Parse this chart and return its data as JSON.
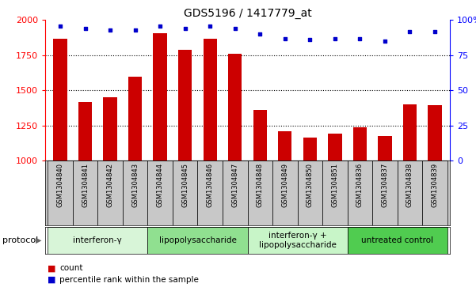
{
  "title": "GDS5196 / 1417779_at",
  "samples": [
    "GSM1304840",
    "GSM1304841",
    "GSM1304842",
    "GSM1304843",
    "GSM1304844",
    "GSM1304845",
    "GSM1304846",
    "GSM1304847",
    "GSM1304848",
    "GSM1304849",
    "GSM1304850",
    "GSM1304851",
    "GSM1304836",
    "GSM1304837",
    "GSM1304838",
    "GSM1304839"
  ],
  "counts": [
    1870,
    1420,
    1450,
    1600,
    1905,
    1790,
    1870,
    1760,
    1360,
    1210,
    1165,
    1195,
    1235,
    1175,
    1400,
    1395
  ],
  "percentiles": [
    96,
    94,
    93,
    93,
    96,
    94,
    96,
    94,
    90,
    87,
    86,
    87,
    87,
    85,
    92,
    92
  ],
  "ylim_left": [
    1000,
    2000
  ],
  "ylim_right": [
    0,
    100
  ],
  "yticks_left": [
    1000,
    1250,
    1500,
    1750,
    2000
  ],
  "yticks_right": [
    0,
    25,
    50,
    75,
    100
  ],
  "bar_color": "#cc0000",
  "dot_color": "#0000cc",
  "bg_plot": "#ffffff",
  "bg_xlabels": "#c8c8c8",
  "groups": [
    {
      "label": "interferon-γ",
      "start": 0,
      "end": 3,
      "color": "#d8f5d8"
    },
    {
      "label": "lipopolysaccharide",
      "start": 4,
      "end": 7,
      "color": "#90e090"
    },
    {
      "label": "interferon-γ +\nlipopolysaccharide",
      "start": 8,
      "end": 11,
      "color": "#c8f5c8"
    },
    {
      "label": "untreated control",
      "start": 12,
      "end": 15,
      "color": "#50cc50"
    }
  ],
  "legend_items": [
    {
      "label": "count",
      "color": "#cc0000"
    },
    {
      "label": "percentile rank within the sample",
      "color": "#0000cc"
    }
  ],
  "protocol_label": "protocol",
  "title_fontsize": 10,
  "tick_fontsize": 8,
  "xlabel_fontsize": 6,
  "proto_fontsize": 7.5
}
